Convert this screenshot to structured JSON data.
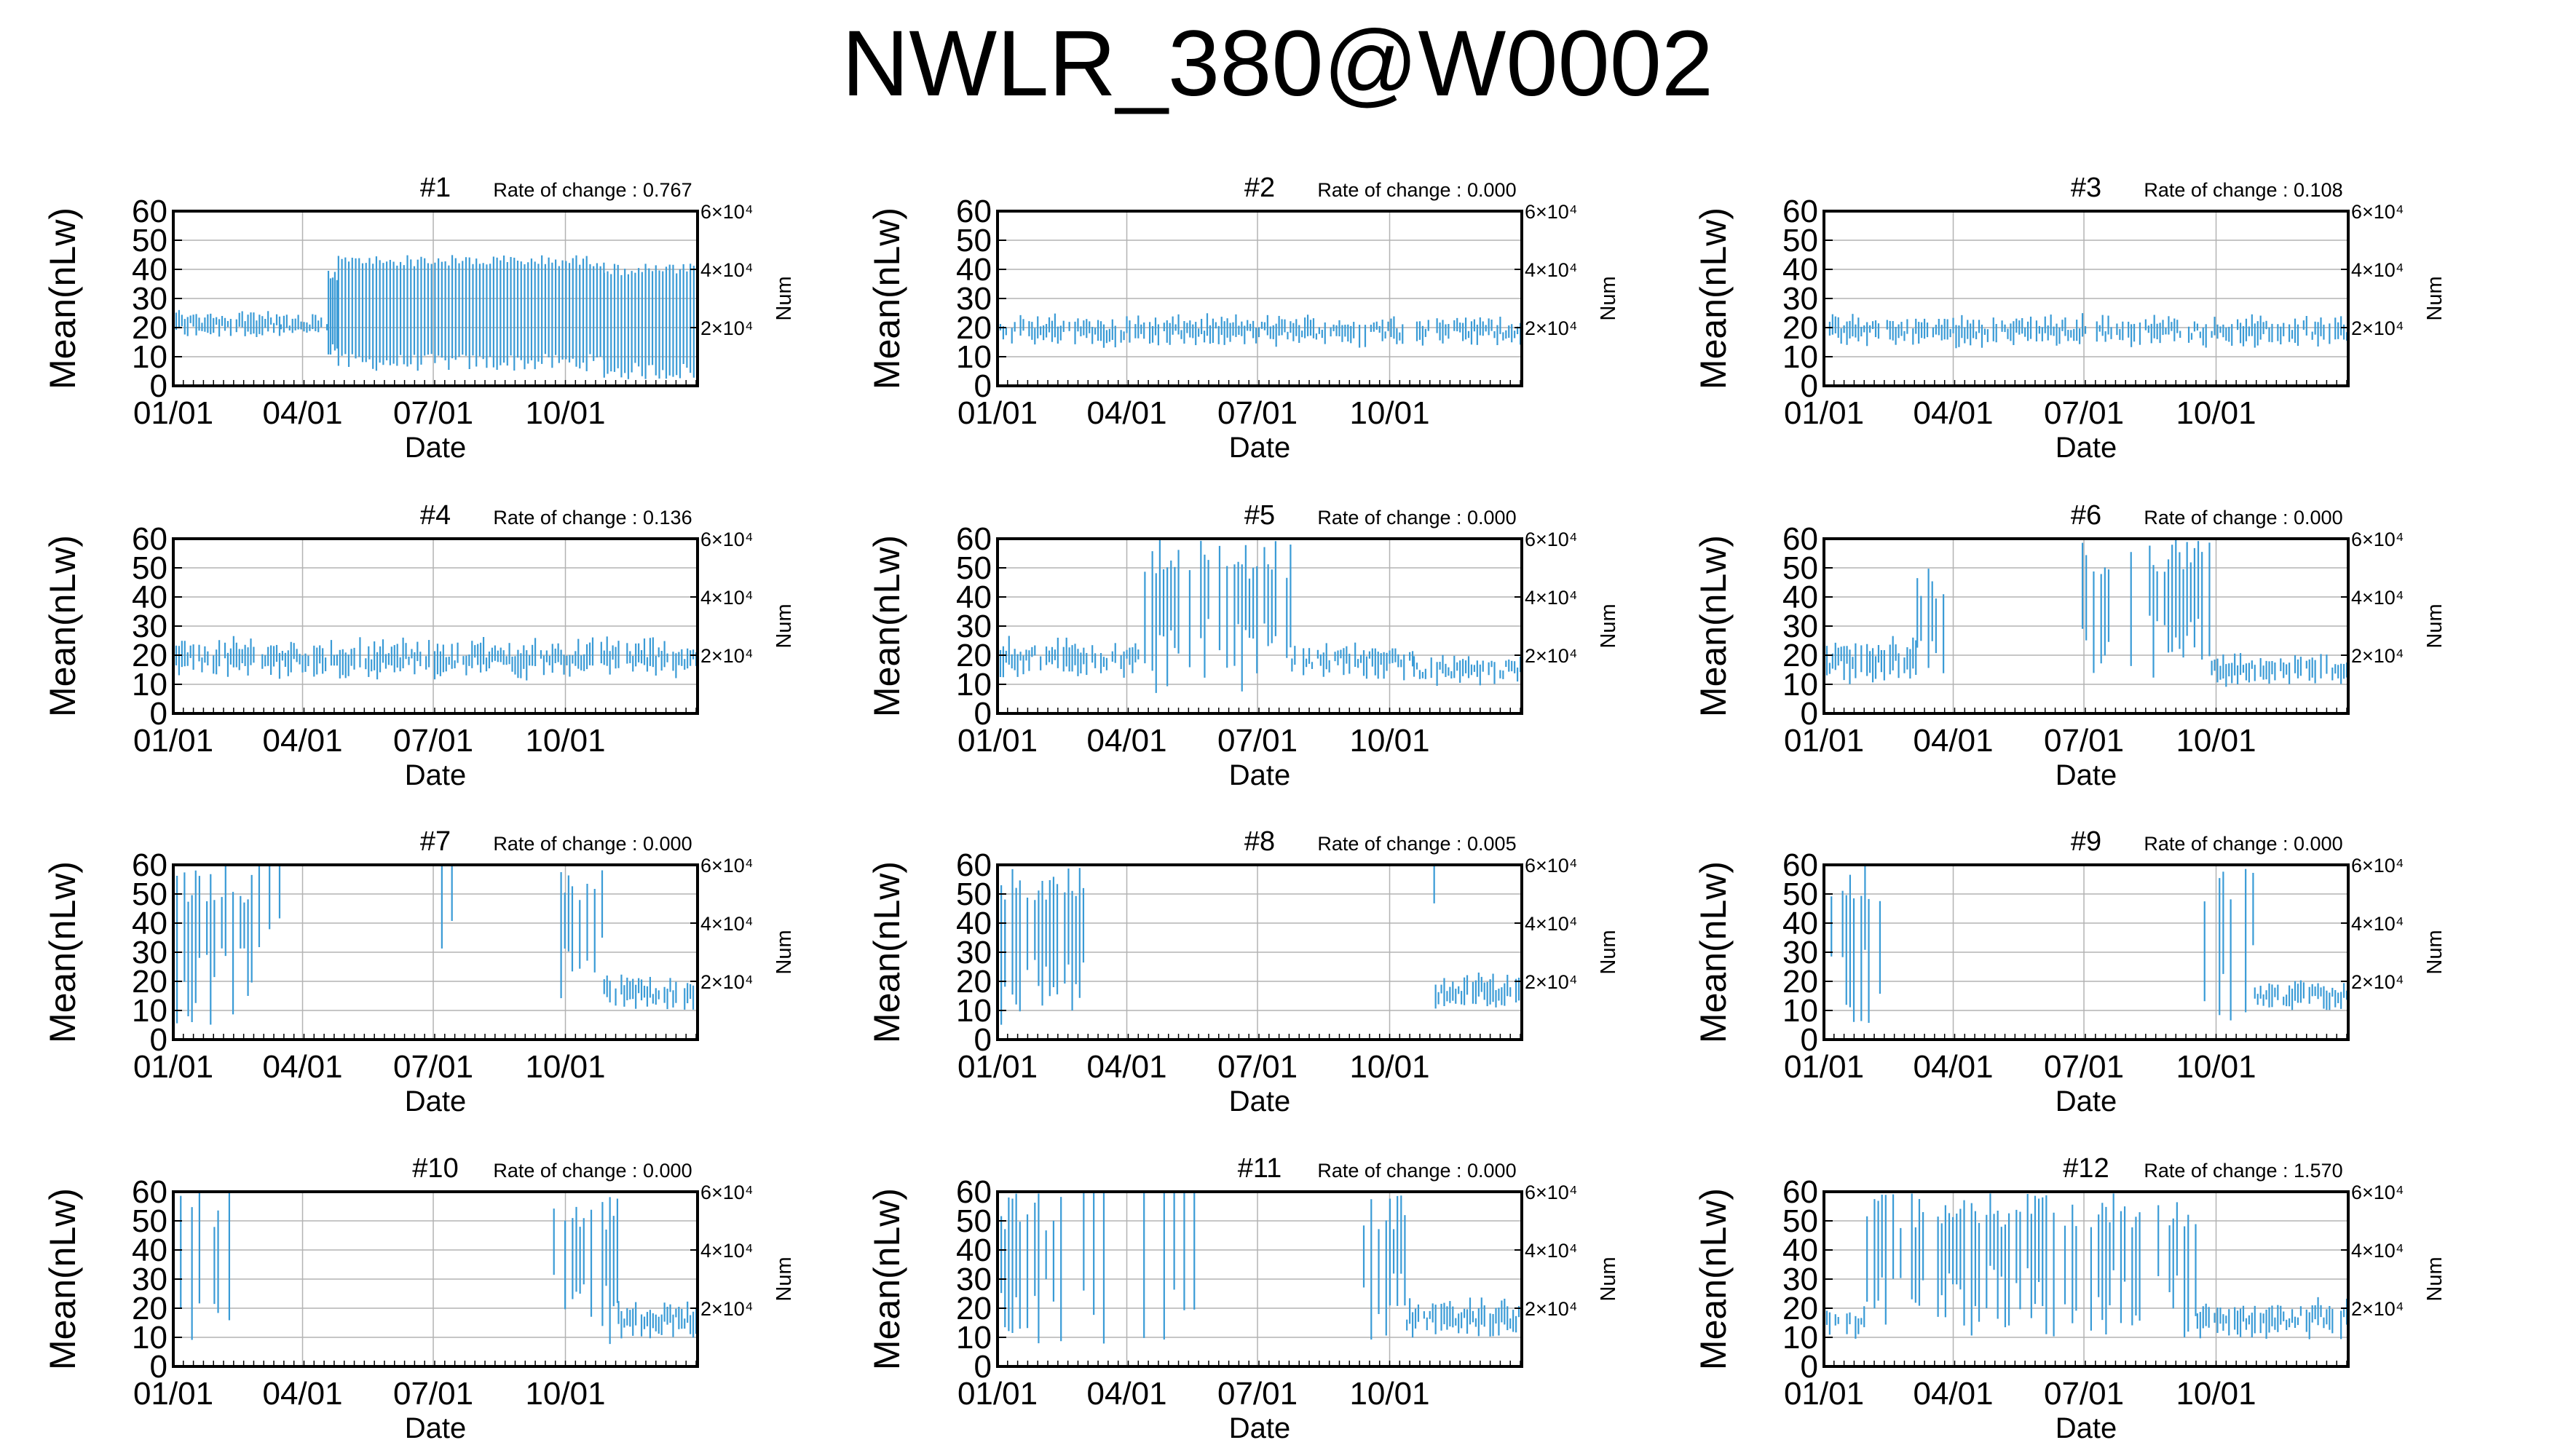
{
  "title": "NWLR_380@W0002",
  "chart_data": {
    "type": "line",
    "ylabel": "Mean(nLw)",
    "xlabel": "Date",
    "y2label": "Num",
    "ylim": [
      0,
      60
    ],
    "yticks": [
      "0",
      "10",
      "20",
      "30",
      "40",
      "50",
      "60"
    ],
    "xticks": [
      "01/01",
      "04/01",
      "07/01",
      "10/01"
    ],
    "xtick_days": [
      0,
      90,
      181,
      273
    ],
    "xlim_days": [
      0,
      365
    ],
    "y2ticks": [
      "2×10⁴",
      "4×10⁴",
      "6×10⁴"
    ],
    "y2tick_values": [
      20000,
      40000,
      60000
    ],
    "y2lim": [
      0,
      60000
    ],
    "grid": true,
    "panels": [
      {
        "label": "#1",
        "rate": "Rate of change : 0.767",
        "segments": [
          [
            0,
            75,
            15,
            28,
            "ok"
          ],
          [
            75,
            108,
            15,
            26,
            "ok"
          ],
          [
            108,
            115,
            10,
            40,
            "cover"
          ],
          [
            115,
            300,
            5,
            45,
            "dense"
          ],
          [
            300,
            365,
            2,
            42,
            "dense"
          ]
        ]
      },
      {
        "label": "#2",
        "rate": "Rate of change : 0.000",
        "segments": [
          [
            0,
            365,
            12,
            26,
            "ok"
          ]
        ]
      },
      {
        "label": "#3",
        "rate": "Rate of change : 0.108",
        "segments": [
          [
            0,
            365,
            12,
            26,
            "ok"
          ]
        ]
      },
      {
        "label": "#4",
        "rate": "Rate of change : 0.136",
        "segments": [
          [
            0,
            365,
            10,
            28,
            "ok"
          ]
        ]
      },
      {
        "label": "#5",
        "rate": "Rate of change : 0.000",
        "segments": [
          [
            0,
            100,
            10,
            28,
            "ok"
          ],
          [
            100,
            205,
            5,
            60,
            "burst"
          ],
          [
            205,
            290,
            10,
            26,
            "ok"
          ],
          [
            290,
            365,
            8,
            22,
            "ok"
          ]
        ]
      },
      {
        "label": "#6",
        "rate": "Rate of change : 0.000",
        "segments": [
          [
            0,
            65,
            8,
            28,
            "ok"
          ],
          [
            65,
            90,
            5,
            50,
            "burst"
          ],
          [
            180,
            270,
            10,
            60,
            "burst"
          ],
          [
            270,
            365,
            8,
            22,
            "ok"
          ]
        ]
      },
      {
        "label": "#7",
        "rate": "Rate of change : 0.000",
        "segments": [
          [
            0,
            60,
            5,
            60,
            "burst"
          ],
          [
            60,
            80,
            30,
            60,
            "sparse"
          ],
          [
            180,
            210,
            30,
            60,
            "sparse"
          ],
          [
            270,
            300,
            10,
            60,
            "burst"
          ],
          [
            300,
            365,
            8,
            25,
            "ok"
          ]
        ]
      },
      {
        "label": "#8",
        "rate": "Rate of change : 0.005",
        "segments": [
          [
            0,
            60,
            5,
            60,
            "burst"
          ],
          [
            290,
            305,
            40,
            60,
            "sparse"
          ],
          [
            305,
            365,
            8,
            25,
            "ok"
          ]
        ]
      },
      {
        "label": "#9",
        "rate": "Rate of change : 0.000",
        "segments": [
          [
            0,
            40,
            5,
            60,
            "burst"
          ],
          [
            265,
            300,
            5,
            60,
            "burst"
          ],
          [
            300,
            365,
            8,
            22,
            "ok"
          ]
        ]
      },
      {
        "label": "#10",
        "rate": "Rate of change : 0.000",
        "segments": [
          [
            0,
            40,
            5,
            60,
            "burst"
          ],
          [
            265,
            310,
            5,
            60,
            "burst"
          ],
          [
            310,
            365,
            8,
            25,
            "ok"
          ]
        ]
      },
      {
        "label": "#11",
        "rate": "Rate of change : 0.000",
        "segments": [
          [
            0,
            45,
            5,
            60,
            "burst"
          ],
          [
            60,
            140,
            5,
            60,
            "sparse"
          ],
          [
            255,
            285,
            5,
            60,
            "burst"
          ],
          [
            285,
            365,
            8,
            25,
            "ok"
          ]
        ]
      },
      {
        "label": "#12",
        "rate": "Rate of change : 1.570",
        "segments": [
          [
            0,
            30,
            8,
            22,
            "ok"
          ],
          [
            30,
            260,
            10,
            60,
            "burst"
          ],
          [
            260,
            365,
            8,
            25,
            "ok"
          ]
        ]
      }
    ]
  }
}
